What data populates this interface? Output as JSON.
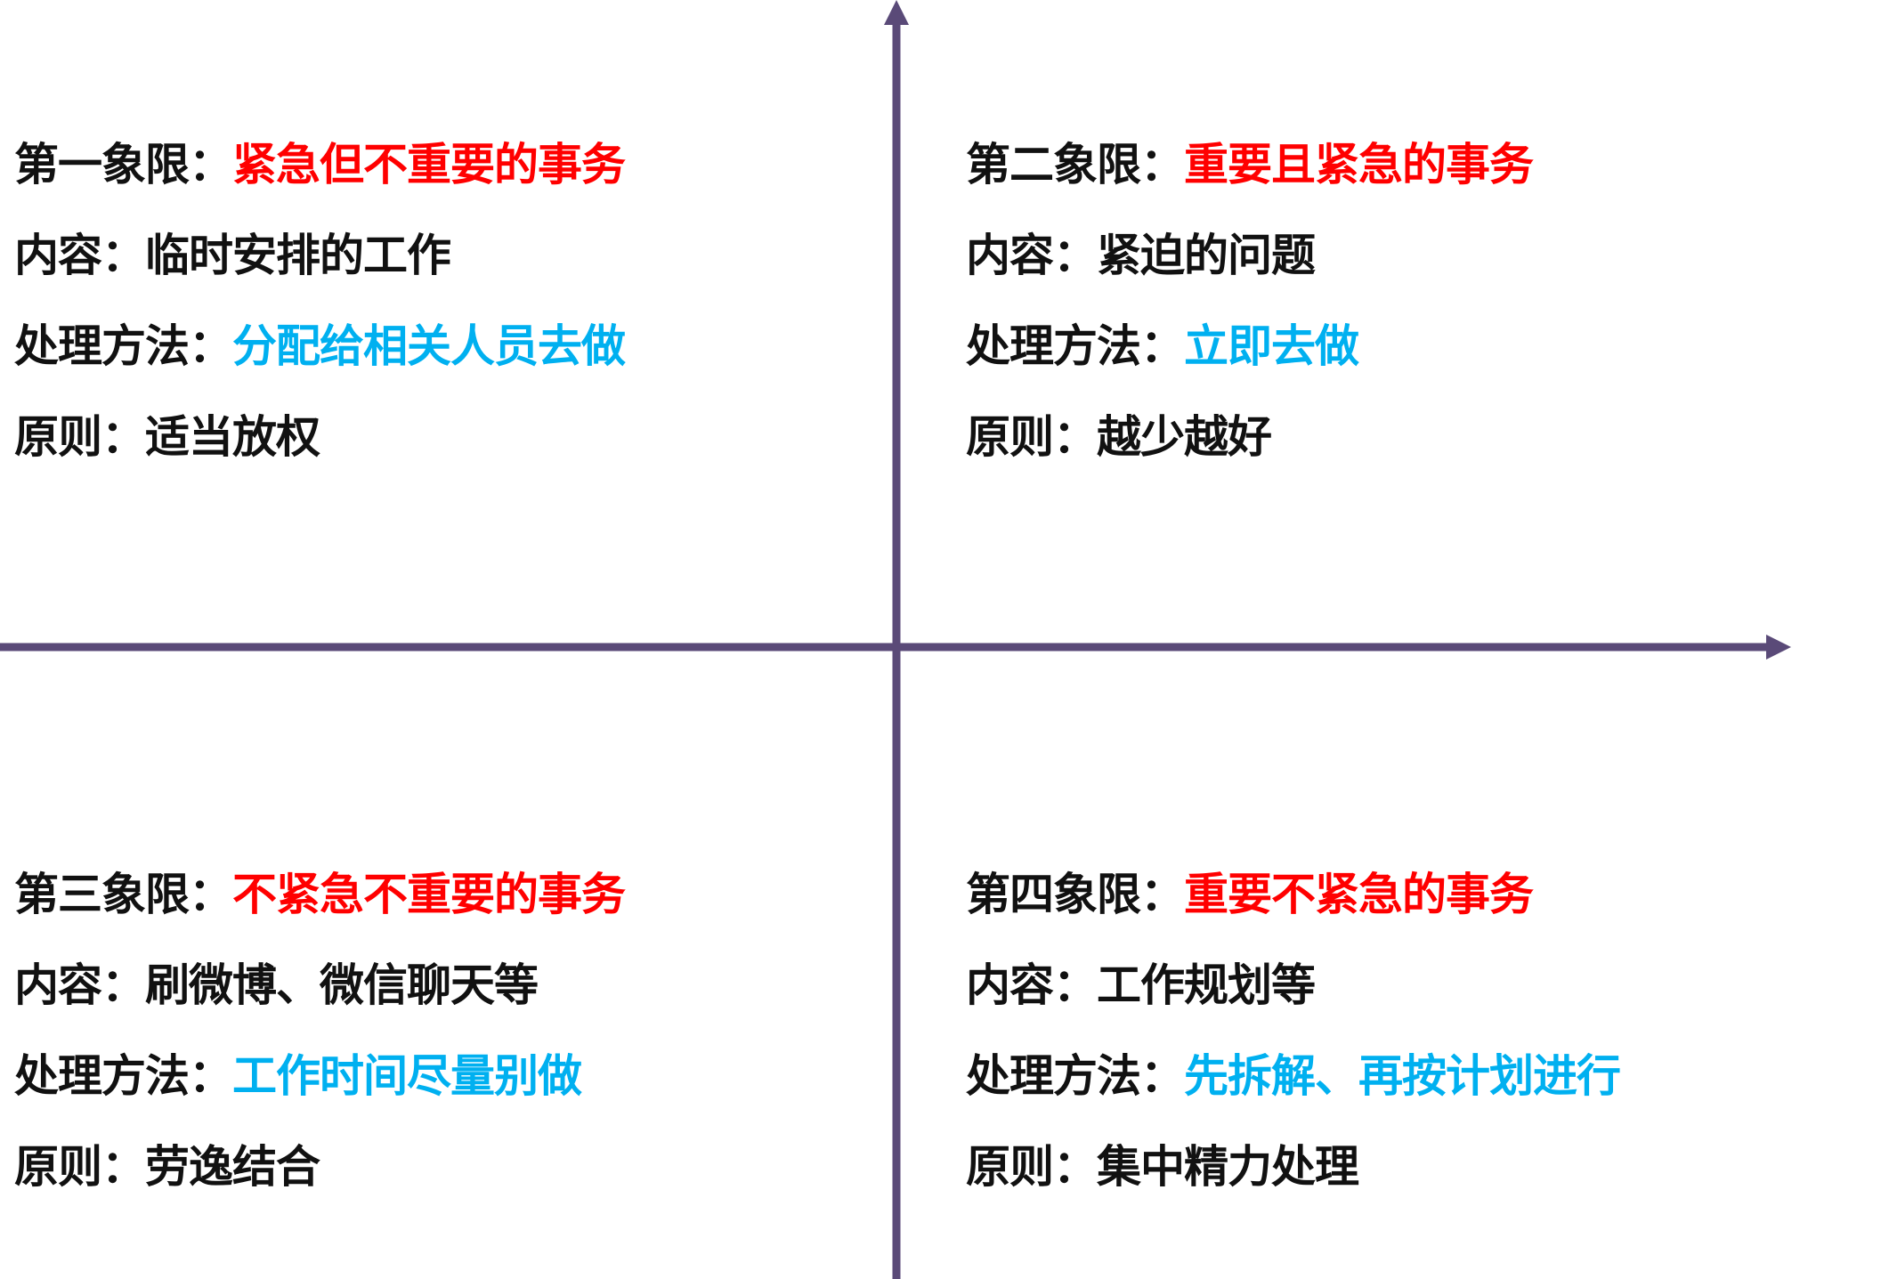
{
  "colors": {
    "axis": "#5a4a78",
    "label": "#111111",
    "title_highlight": "#ff0000",
    "method_highlight": "#00b0f0"
  },
  "quadrants": [
    {
      "title_label": "第一象限：",
      "title_value": "紧急但不重要的事务",
      "content_label": "内容：",
      "content_value": "临时安排的工作",
      "method_label": "处理方法：",
      "method_value": "分配给相关人员去做",
      "principle_label": "原则：",
      "principle_value": "适当放权"
    },
    {
      "title_label": "第二象限：",
      "title_value": "重要且紧急的事务",
      "content_label": "内容：",
      "content_value": "紧迫的问题",
      "method_label": "处理方法：",
      "method_value": "立即去做",
      "principle_label": "原则：",
      "principle_value": "越少越好"
    },
    {
      "title_label": "第三象限：",
      "title_value": "不紧急不重要的事务",
      "content_label": "内容：",
      "content_value": "刷微博、微信聊天等",
      "method_label": "处理方法：",
      "method_value": "工作时间尽量别做",
      "principle_label": "原则：",
      "principle_value": "劳逸结合"
    },
    {
      "title_label": "第四象限：",
      "title_value": "重要不紧急的事务",
      "content_label": "内容：",
      "content_value": "工作规划等",
      "method_label": "处理方法：",
      "method_value": "先拆解、再按计划进行",
      "principle_label": "原则：",
      "principle_value": "集中精力处理"
    }
  ]
}
